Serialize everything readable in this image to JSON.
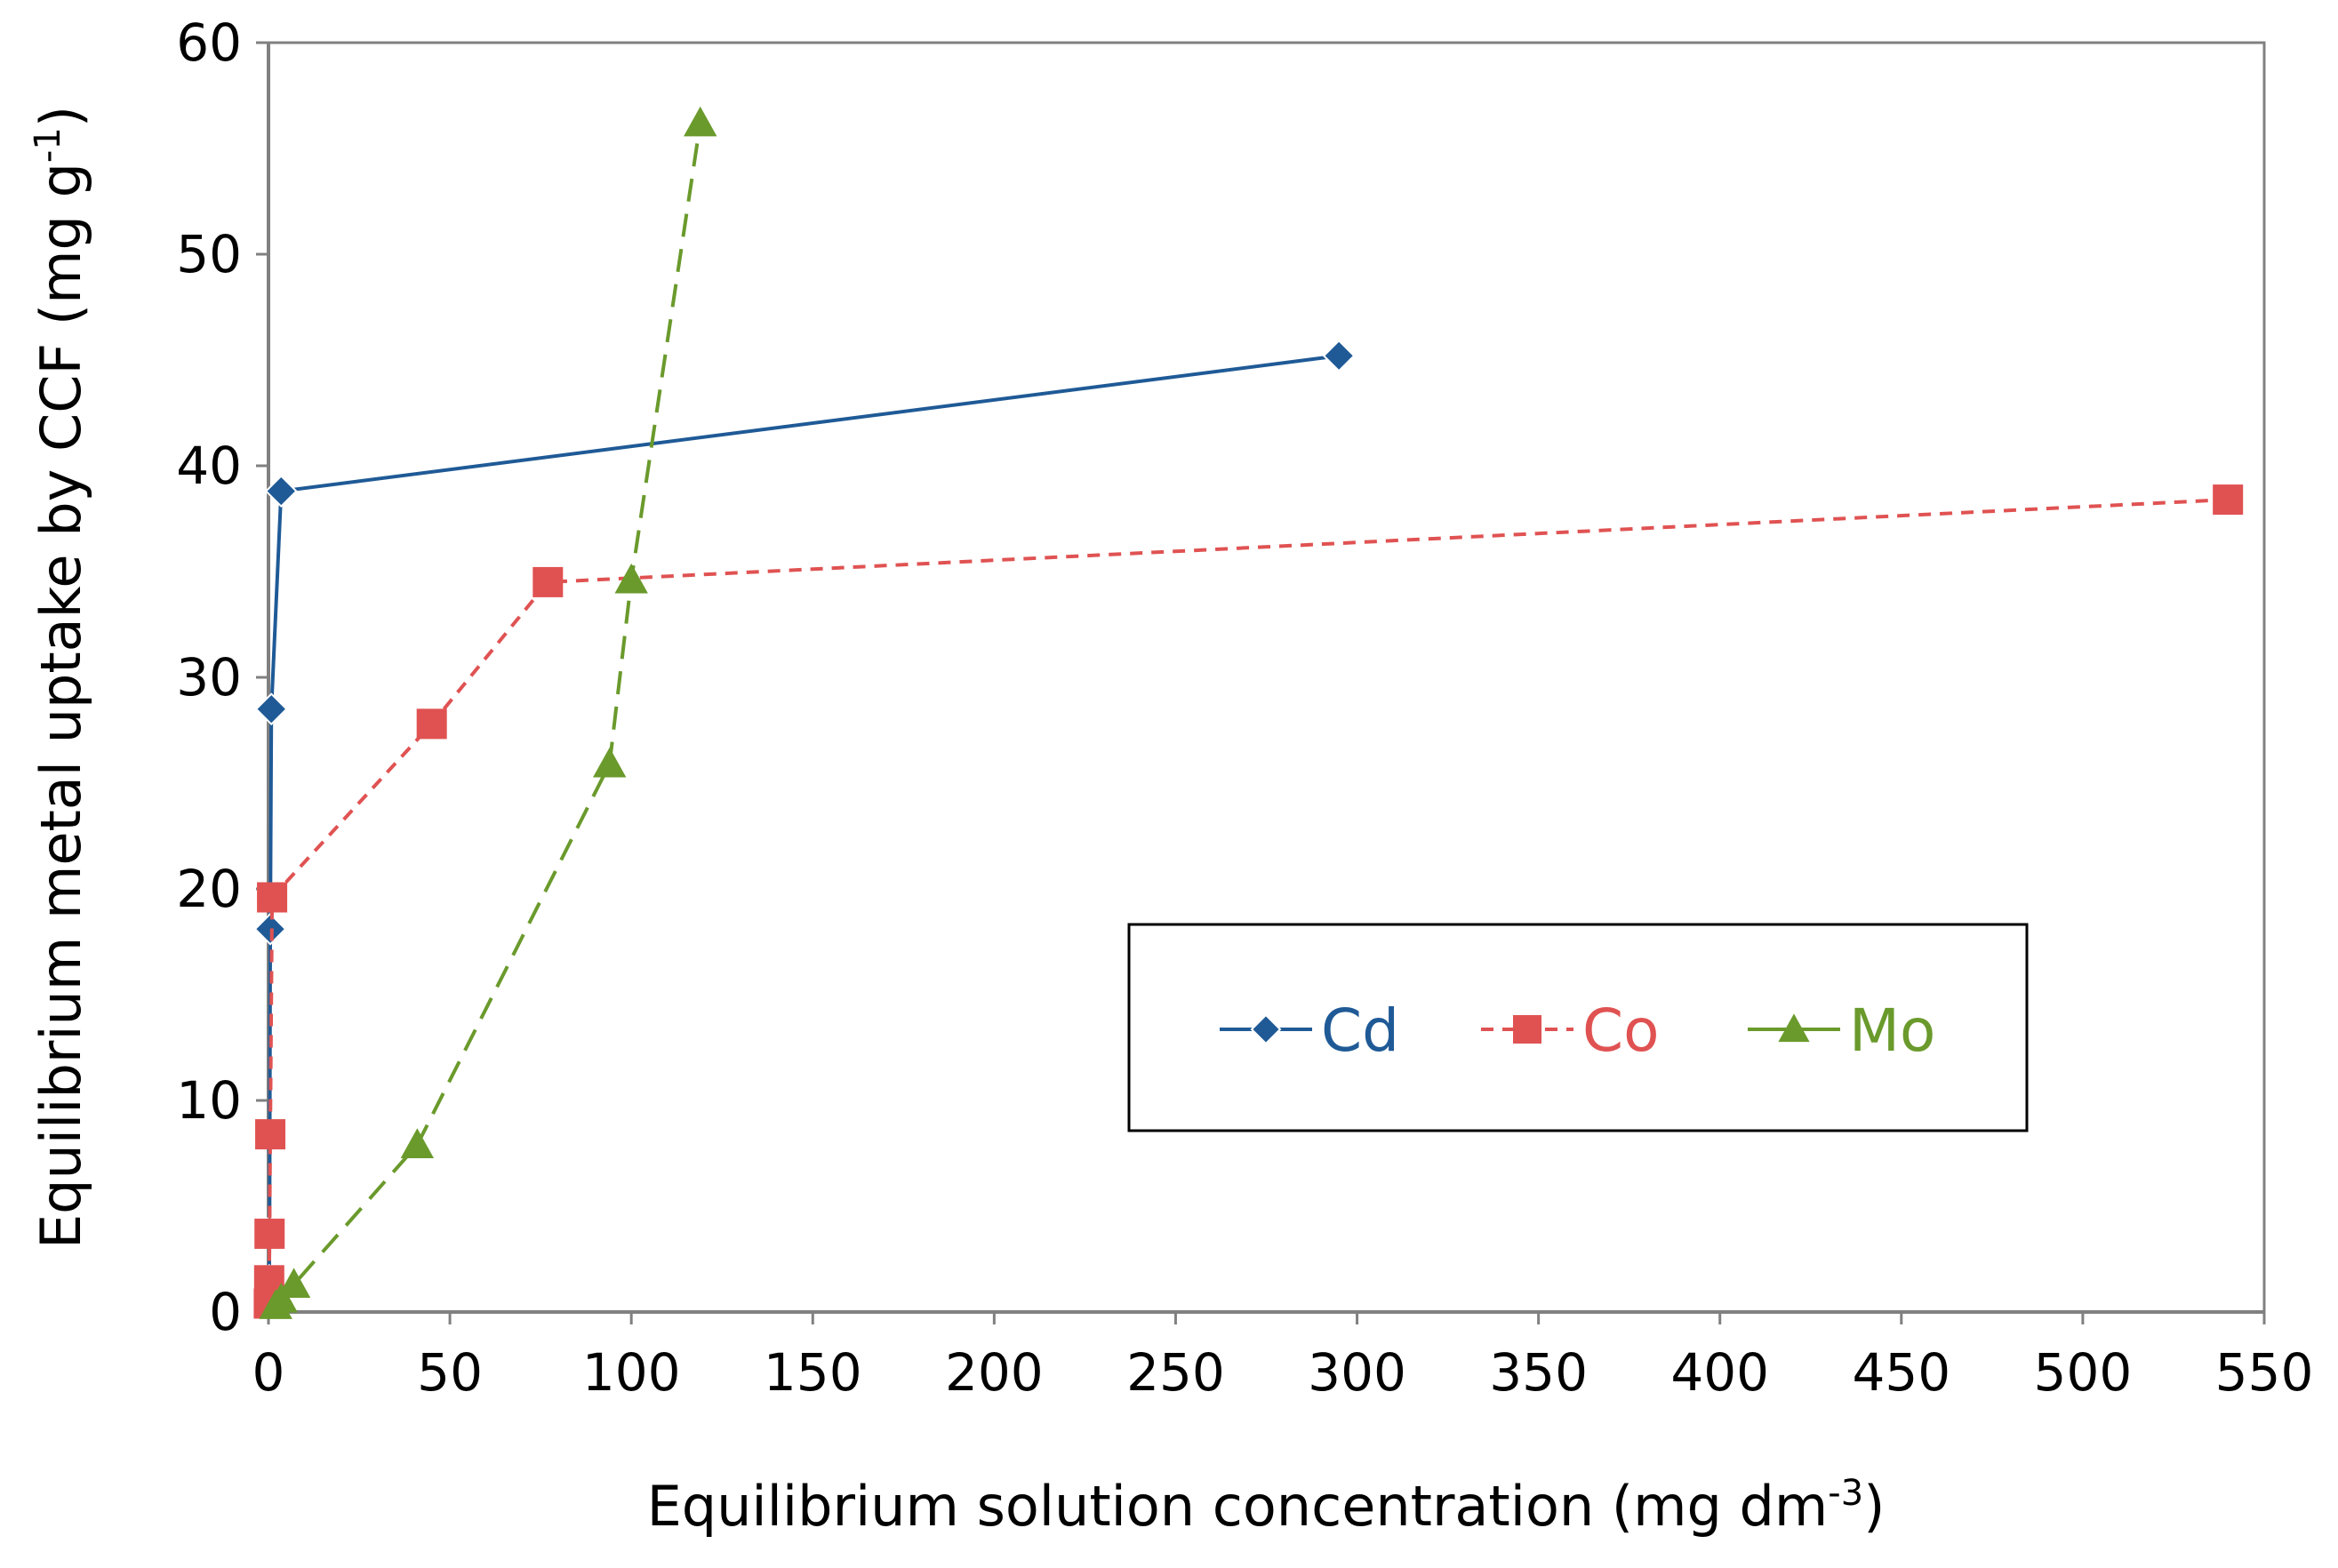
{
  "chart_data": {
    "type": "line",
    "title": "",
    "xlabel": {
      "main": "Equilibrium solution concentration (mg dm",
      "sup": "-3",
      "end": ")"
    },
    "ylabel": {
      "main": "Equilibrium metal uptake by CCF (mg g",
      "sup": "-1",
      "end": ")"
    },
    "xlim": [
      0,
      550
    ],
    "ylim": [
      0,
      60
    ],
    "xticks": [
      0,
      50,
      100,
      150,
      200,
      250,
      300,
      350,
      400,
      450,
      500,
      550
    ],
    "yticks": [
      0,
      10,
      20,
      30,
      40,
      50,
      60
    ],
    "grid": false,
    "legend_position": "center-right",
    "series": [
      {
        "name": "Cd",
        "color": "#1f5a96",
        "marker": "diamond",
        "line": "solid",
        "points": [
          [
            0.1,
            0.5
          ],
          [
            0.2,
            1.5
          ],
          [
            0.3,
            3.8
          ],
          [
            0.5,
            18.1
          ],
          [
            0.8,
            28.5
          ],
          [
            3.5,
            38.8
          ],
          [
            295,
            45.2
          ]
        ]
      },
      {
        "name": "Co",
        "color": "#e05252",
        "marker": "square",
        "line": "dashed",
        "points": [
          [
            0.1,
            0.4
          ],
          [
            0.2,
            1.5
          ],
          [
            0.3,
            3.7
          ],
          [
            0.5,
            8.4
          ],
          [
            1.0,
            19.6
          ],
          [
            45,
            27.8
          ],
          [
            77,
            34.5
          ],
          [
            540,
            38.4
          ]
        ]
      },
      {
        "name": "Mo",
        "color": "#6a9a2c",
        "marker": "triangle",
        "line": "longdash",
        "points": [
          [
            2,
            0.3
          ],
          [
            3.5,
            0.6
          ],
          [
            7,
            1.3
          ],
          [
            41,
            7.9
          ],
          [
            94,
            25.9
          ],
          [
            100,
            34.6
          ],
          [
            119,
            56.2
          ]
        ]
      }
    ]
  }
}
